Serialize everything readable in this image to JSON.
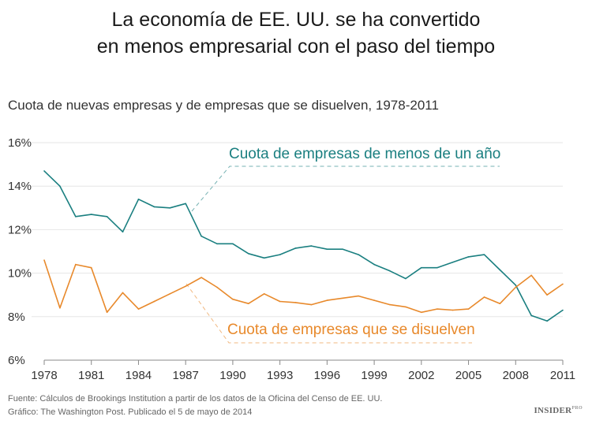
{
  "chart_data": {
    "type": "line",
    "title": "La economía de EE. UU. se ha convertido en menos empresarial con el paso del tiempo",
    "title_lines": [
      "La economía de EE. UU. se ha convertido",
      "en menos empresarial con el paso del tiempo"
    ],
    "subtitle": "Cuota de nuevas empresas y de empresas que se disuelven, 1978-2011",
    "xlabel": "",
    "ylabel": "",
    "xlim": [
      1978,
      2011
    ],
    "ylim": [
      6,
      16
    ],
    "x_ticks": [
      "1978",
      "1981",
      "1984",
      "1987",
      "1990",
      "1993",
      "1996",
      "1999",
      "2002",
      "2005",
      "2008",
      "2011"
    ],
    "y_ticks": [
      "6%",
      "8%",
      "10%",
      "12%",
      "14%",
      "16%"
    ],
    "grid": "horizontal",
    "x": [
      1978,
      1979,
      1980,
      1981,
      1982,
      1983,
      1984,
      1985,
      1986,
      1987,
      1988,
      1989,
      1990,
      1991,
      1992,
      1993,
      1994,
      1995,
      1996,
      1997,
      1998,
      1999,
      2000,
      2001,
      2002,
      2003,
      2004,
      2005,
      2006,
      2007,
      2008,
      2009,
      2010,
      2011
    ],
    "series": [
      {
        "name": "Cuota de empresas de menos de un año",
        "color": "#1a7f80",
        "values": [
          14.7,
          14.0,
          12.6,
          12.7,
          12.6,
          11.9,
          13.4,
          13.05,
          13.0,
          13.2,
          11.7,
          11.35,
          11.35,
          10.9,
          10.7,
          10.85,
          11.15,
          11.25,
          11.1,
          11.1,
          10.85,
          10.4,
          10.1,
          9.75,
          10.25,
          10.25,
          10.5,
          10.75,
          10.85,
          10.15,
          9.45,
          8.05,
          7.8,
          8.3
        ]
      },
      {
        "name": "Cuota de empresas que se disuelven",
        "color": "#e8892b",
        "values": [
          10.6,
          8.4,
          10.4,
          10.25,
          8.2,
          9.1,
          8.35,
          8.7,
          9.05,
          9.4,
          9.8,
          9.35,
          8.8,
          8.6,
          9.05,
          8.7,
          8.65,
          8.55,
          8.75,
          8.85,
          8.95,
          8.75,
          8.55,
          8.45,
          8.2,
          8.35,
          8.3,
          8.35,
          8.9,
          8.6,
          9.35,
          9.9,
          9.0,
          9.5
        ]
      }
    ]
  },
  "footer": {
    "source": "Fuente: Cálculos de Brookings Institution a partir de los datos de la Oficina del Censo de EE. UU.",
    "credit": "Gráfico: The Washington Post. Publicado el 5 de mayo de 2014"
  },
  "logo": {
    "main": "INSIDER",
    "sup": "PRO"
  }
}
